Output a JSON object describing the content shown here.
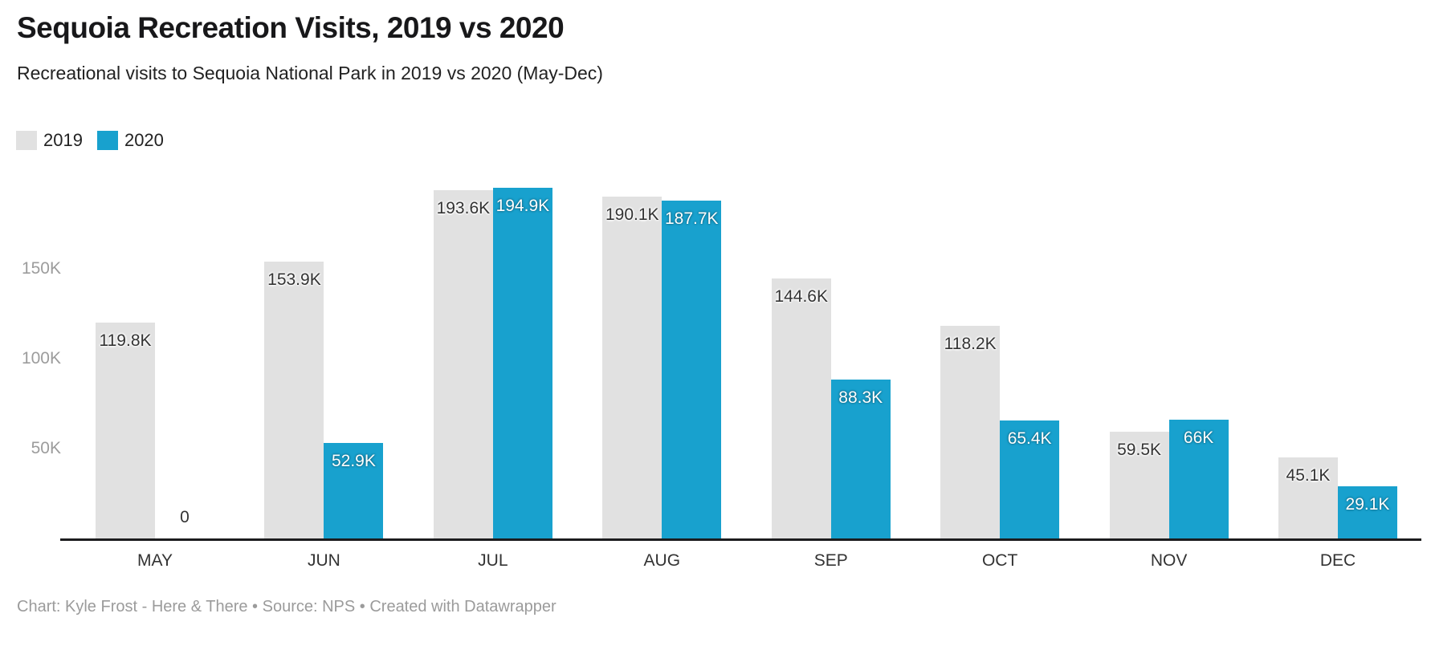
{
  "chart_data": {
    "type": "bar",
    "title": "Sequoia Recreation Visits, 2019 vs 2020",
    "subtitle": "Recreational visits to Sequoia National Park in 2019 vs 2020 (May-Dec)",
    "categories": [
      "MAY",
      "JUN",
      "JUL",
      "AUG",
      "SEP",
      "OCT",
      "NOV",
      "DEC"
    ],
    "series": [
      {
        "name": "2019",
        "color": "#e1e1e1",
        "values": [
          119800,
          153900,
          193600,
          190100,
          144600,
          118200,
          59500,
          45100
        ],
        "value_labels": [
          "119.8K",
          "153.9K",
          "193.6K",
          "190.1K",
          "144.6K",
          "118.2K",
          "59.5K",
          "45.1K"
        ]
      },
      {
        "name": "2020",
        "color": "#18a1ce",
        "values": [
          0,
          52900,
          194900,
          187700,
          88300,
          65400,
          66000,
          29100
        ],
        "value_labels": [
          "0",
          "52.9K",
          "194.9K",
          "187.7K",
          "88.3K",
          "65.4K",
          "66K",
          "29.1K"
        ]
      }
    ],
    "xlabel": "",
    "ylabel": "",
    "y_ticks": [
      {
        "value": 50000,
        "label": "50K"
      },
      {
        "value": 100000,
        "label": "100K"
      },
      {
        "value": 150000,
        "label": "150K"
      }
    ],
    "ylim": [
      0,
      200000
    ],
    "grid": false,
    "legend_position": "top-left",
    "colors": {
      "bar_2019": "#e1e1e1",
      "bar_2020": "#18a1ce",
      "axis_line": "#1c1c1e",
      "tick_text": "#9c9c9c",
      "dark_label": "#333333",
      "light_label": "#ffffff"
    }
  },
  "footer": {
    "text": "Chart: Kyle Frost - Here & There • Source: NPS • Created with Datawrapper"
  }
}
